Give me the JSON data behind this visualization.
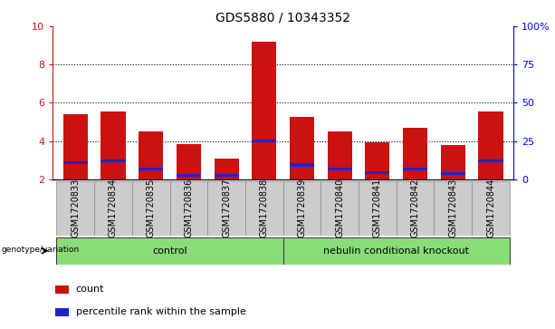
{
  "title": "GDS5880 / 10343352",
  "samples": [
    "GSM1720833",
    "GSM1720834",
    "GSM1720835",
    "GSM1720836",
    "GSM1720837",
    "GSM1720838",
    "GSM1720839",
    "GSM1720840",
    "GSM1720841",
    "GSM1720842",
    "GSM1720843",
    "GSM1720844"
  ],
  "count_values": [
    5.4,
    5.55,
    4.5,
    3.85,
    3.1,
    9.2,
    5.25,
    4.5,
    3.95,
    4.7,
    3.8,
    5.55
  ],
  "percentile_values": [
    2.85,
    2.95,
    2.55,
    2.2,
    2.2,
    4.0,
    2.75,
    2.55,
    2.35,
    2.55,
    2.3,
    2.95
  ],
  "groups": [
    {
      "label": "control",
      "start": 0,
      "end": 5
    },
    {
      "label": "nebulin conditional knockout",
      "start": 6,
      "end": 11
    }
  ],
  "ylim_left": [
    2,
    10
  ],
  "yticks_left": [
    2,
    4,
    6,
    8,
    10
  ],
  "yticks_right": [
    0,
    25,
    50,
    75,
    100
  ],
  "ytick_labels_right": [
    "0",
    "25",
    "50",
    "75",
    "100%"
  ],
  "bar_width": 0.65,
  "count_color": "#cc1111",
  "percentile_color": "#2222cc",
  "cell_bg_color": "#cccccc",
  "group_bg_color": "#88dd77",
  "legend_count_label": "count",
  "legend_percentile_label": "percentile rank within the sample",
  "genotype_label": "genotype/variation",
  "title_fontsize": 10,
  "tick_fontsize": 7,
  "legend_fontsize": 8
}
